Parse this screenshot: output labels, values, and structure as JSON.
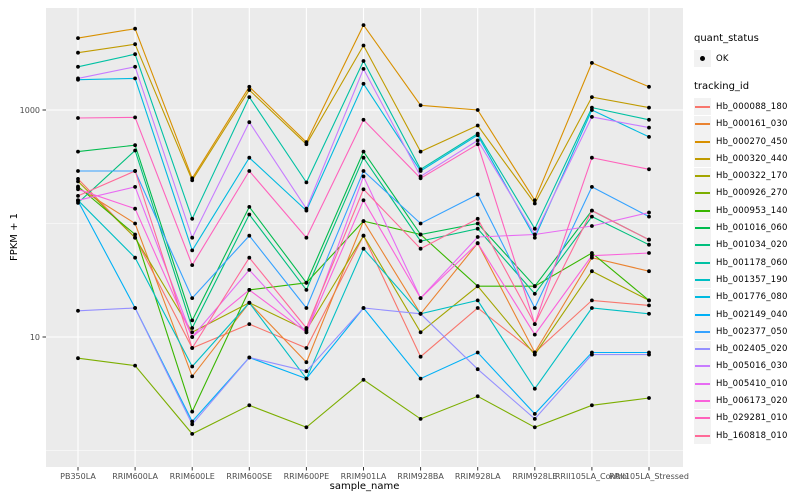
{
  "figure": {
    "legend": {
      "quant_status_title": "quant_status",
      "ok_label": "OK",
      "tracking_title": "tracking_id"
    },
    "colors": {
      "panel_bg": "#EBEBEB",
      "grid": "#FFFFFF",
      "legend_key_bg": "#F2F2F2",
      "point": "#000000",
      "tick_text": "#4D4D4D",
      "axis_title_text": "#000000"
    }
  },
  "chart_data": {
    "type": "line",
    "title": "",
    "xlabel": "sample_name",
    "ylabel": "FPKM + 1",
    "y_scale": "log10",
    "ylim": [
      0.8,
      7500
    ],
    "y_ticks_labeled": [
      {
        "label": "1000",
        "value": 1000
      },
      {
        "label": "10",
        "value": 10
      }
    ],
    "y_gridlines_minor": [
      100,
      1
    ],
    "grid": true,
    "legend_position": "right",
    "point_symbol": "black-dot",
    "categories": [
      "PB350LA",
      "RRIM600LA",
      "RRIM600LE",
      "RRIM600SE",
      "RRIM600PE",
      "RRIM901LA",
      "RRIM928BA",
      "RRIM928LA",
      "RRIM928LE",
      "RRII105LA_Control",
      "RRII105LA_Stressed"
    ],
    "series": [
      {
        "name": "Hb_000088_180",
        "color": "#F8766D",
        "values": [
          247,
          75,
          8,
          13,
          8,
          78,
          6.7,
          18,
          7.3,
          21,
          19
        ]
      },
      {
        "name": "Hb_000161_030",
        "color": "#EA8331",
        "values": [
          207,
          100,
          4.5,
          20,
          6,
          105,
          16,
          67,
          7.3,
          50,
          38
        ]
      },
      {
        "name": "Hb_000270_450",
        "color": "#D89000",
        "values": [
          4300,
          5200,
          250,
          1600,
          520,
          5600,
          1100,
          1000,
          160,
          2600,
          1600
        ]
      },
      {
        "name": "Hb_000320_440",
        "color": "#C09B00",
        "values": [
          3200,
          3800,
          240,
          1500,
          500,
          3700,
          430,
          730,
          150,
          1300,
          1050
        ]
      },
      {
        "name": "Hb_000322_170",
        "color": "#A3A500",
        "values": [
          235,
          75,
          11,
          20,
          11.5,
          78,
          11,
          28,
          7,
          38,
          21
        ]
      },
      {
        "name": "Hb_000926_270",
        "color": "#7CAE00",
        "values": [
          6.5,
          5.6,
          1.4,
          2.5,
          1.6,
          4.2,
          1.9,
          3,
          1.6,
          2.5,
          2.9
        ]
      },
      {
        "name": "Hb_000953_140",
        "color": "#39B600",
        "values": [
          212,
          80,
          2.2,
          26,
          30,
          105,
          80,
          28,
          28,
          55,
          21
        ]
      },
      {
        "name": "Hb_001016_060",
        "color": "#00BB4E",
        "values": [
          430,
          490,
          14,
          140,
          30,
          430,
          80,
          100,
          28,
          130,
          72
        ]
      },
      {
        "name": "Hb_001034_020",
        "color": "#00BF7D",
        "values": [
          152,
          440,
          12,
          120,
          26,
          380,
          70,
          90,
          24,
          115,
          65
        ]
      },
      {
        "name": "Hb_001178_060",
        "color": "#00C1A3",
        "values": [
          2400,
          3100,
          110,
          1300,
          230,
          2700,
          300,
          620,
          90,
          1050,
          820
        ]
      },
      {
        "name": "Hb_001357_190",
        "color": "#00BFC4",
        "values": [
          160,
          50,
          5.5,
          20,
          4.3,
          60,
          16,
          21,
          3.5,
          18,
          16
        ]
      },
      {
        "name": "Hb_001776_080",
        "color": "#00BAE0",
        "values": [
          1850,
          1900,
          58,
          380,
          130,
          1700,
          290,
          600,
          75,
          1000,
          580
        ]
      },
      {
        "name": "Hb_002149_040",
        "color": "#00B0F6",
        "values": [
          158,
          18,
          1.8,
          6.6,
          4.3,
          18,
          4.3,
          7.3,
          2.1,
          7.3,
          7.3
        ]
      },
      {
        "name": "Hb_002377_050",
        "color": "#35A2FF",
        "values": [
          290,
          290,
          22,
          78,
          18,
          290,
          100,
          180,
          18,
          210,
          115
        ]
      },
      {
        "name": "Hb_002405_020",
        "color": "#9590FF",
        "values": [
          17,
          18,
          1.7,
          6.6,
          5,
          18,
          16,
          5.2,
          1.9,
          7,
          7
        ]
      },
      {
        "name": "Hb_005016_030",
        "color": "#C77CFF",
        "values": [
          1900,
          2400,
          75,
          780,
          135,
          2300,
          260,
          540,
          80,
          870,
          700
        ]
      },
      {
        "name": "Hb_005410_010",
        "color": "#E76BF3",
        "values": [
          160,
          210,
          10,
          39,
          11,
          260,
          22,
          76,
          80,
          95,
          125
        ]
      },
      {
        "name": "Hb_006173_020",
        "color": "#FA62DB",
        "values": [
          200,
          135,
          10,
          26,
          11,
          160,
          22,
          67,
          10.5,
          52,
          55
        ]
      },
      {
        "name": "Hb_029281_010",
        "color": "#FF62BC",
        "values": [
          850,
          860,
          43,
          290,
          75,
          820,
          250,
          500,
          13,
          380,
          300
        ]
      },
      {
        "name": "Hb_160818_010",
        "color": "#FF6A98",
        "values": [
          175,
          290,
          8,
          50,
          12,
          200,
          60,
          110,
          13,
          130,
          72
        ]
      }
    ]
  }
}
